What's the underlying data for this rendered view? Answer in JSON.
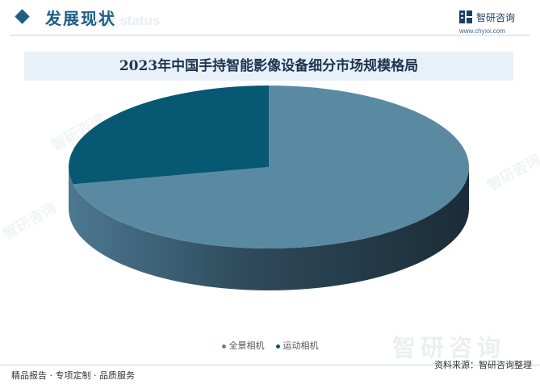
{
  "header": {
    "section_title": "发展现状",
    "section_subtitle": "ent status",
    "brand_name": "智研咨询",
    "brand_url": "www.chyxx.com"
  },
  "watermark": "智研咨询",
  "footer": {
    "left": "精品报告 · 专项定制 · 品质服务",
    "right": "资料来源：智研咨询整理"
  },
  "colors": {
    "accent": "#1f5f86",
    "slice_1": "#5a8aa2",
    "slice_2": "#075873"
  },
  "chart_data": {
    "type": "pie",
    "title": "2023年中国手持智能影像设备细分市场规模格局",
    "categories": [
      "全景相机",
      "运动相机"
    ],
    "values": [
      71.6,
      28.4
    ],
    "legend": "bottom"
  }
}
